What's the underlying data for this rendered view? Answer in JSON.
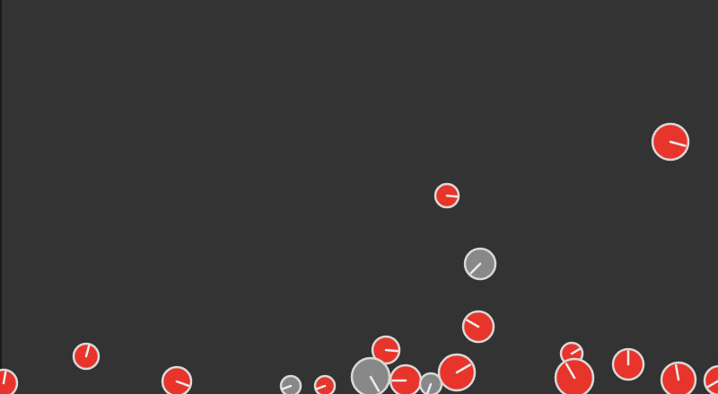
{
  "colors": {
    "background": "#333333",
    "border": "#1a1a1a",
    "red_fill": "#e8352b",
    "gray_fill": "#888888",
    "outline": "#d9d9d9",
    "indicator": "#ececec"
  },
  "balls": [
    {
      "id": 1,
      "kind": "red",
      "angle_deg": 80
    },
    {
      "id": 2,
      "kind": "red",
      "angle_deg": 75
    },
    {
      "id": 3,
      "kind": "red",
      "angle_deg": -20
    },
    {
      "id": 4,
      "kind": "red",
      "angle_deg": -5
    },
    {
      "id": 5,
      "kind": "gray",
      "angle_deg": 225
    },
    {
      "id": 6,
      "kind": "red",
      "angle_deg": -15
    },
    {
      "id": 7,
      "kind": "red",
      "angle_deg": 150
    },
    {
      "id": 8,
      "kind": "red",
      "angle_deg": -5
    },
    {
      "id": 9,
      "kind": "red",
      "angle_deg": 30
    },
    {
      "id": 10,
      "kind": "gray",
      "angle_deg": 200
    },
    {
      "id": 11,
      "kind": "red",
      "angle_deg": 200
    },
    {
      "id": 12,
      "kind": "gray",
      "angle_deg": -60
    },
    {
      "id": 13,
      "kind": "red",
      "angle_deg": 180
    },
    {
      "id": 14,
      "kind": "gray",
      "angle_deg": 250
    },
    {
      "id": 15,
      "kind": "red",
      "angle_deg": 30
    },
    {
      "id": 16,
      "kind": "red",
      "angle_deg": 120
    },
    {
      "id": 17,
      "kind": "red",
      "angle_deg": 90
    },
    {
      "id": 18,
      "kind": "red",
      "angle_deg": 100
    },
    {
      "id": 19,
      "kind": "red",
      "angle_deg": 210
    },
    {
      "id": 20,
      "kind": "gray",
      "angle_deg": -20
    },
    {
      "id": 21,
      "kind": "gray",
      "angle_deg": 210
    }
  ]
}
